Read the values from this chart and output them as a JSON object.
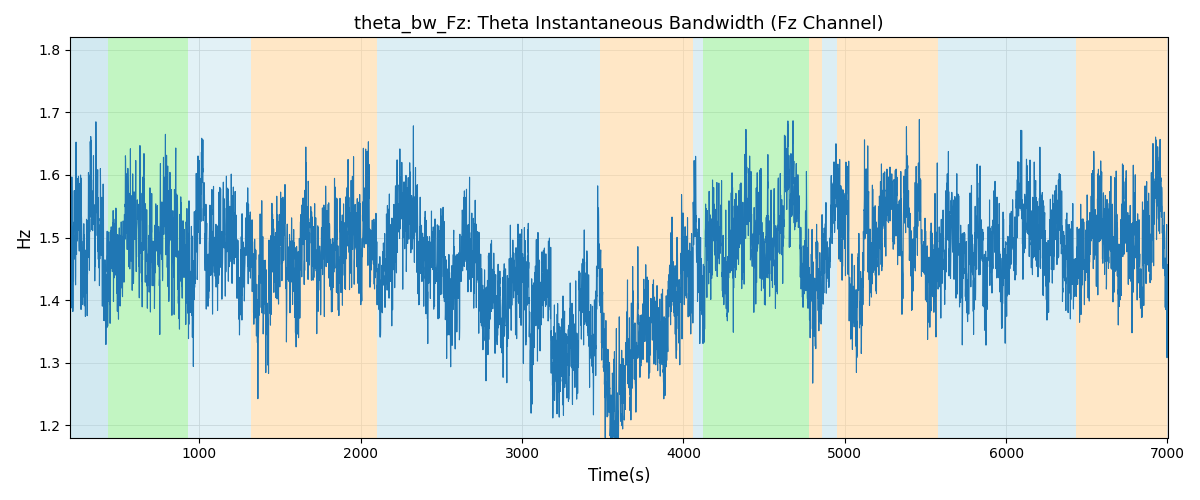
{
  "title": "theta_bw_Fz: Theta Instantaneous Bandwidth (Fz Channel)",
  "xlabel": "Time(s)",
  "ylabel": "Hz",
  "xlim": [
    200,
    7000
  ],
  "ylim": [
    1.18,
    1.82
  ],
  "yticks": [
    1.2,
    1.3,
    1.4,
    1.5,
    1.6,
    1.7,
    1.8
  ],
  "xticks": [
    1000,
    2000,
    3000,
    4000,
    5000,
    6000,
    7000
  ],
  "line_color": "#2077b4",
  "line_width": 0.8,
  "background_color": "#ffffff",
  "bands": [
    {
      "xmin": 200,
      "xmax": 430,
      "color": "#add8e6",
      "alpha": 0.55
    },
    {
      "xmin": 430,
      "xmax": 930,
      "color": "#90ee90",
      "alpha": 0.55
    },
    {
      "xmin": 930,
      "xmax": 1320,
      "color": "#add8e6",
      "alpha": 0.35
    },
    {
      "xmin": 1320,
      "xmax": 2100,
      "color": "#ffd8a0",
      "alpha": 0.6
    },
    {
      "xmin": 2100,
      "xmax": 3480,
      "color": "#add8e6",
      "alpha": 0.42
    },
    {
      "xmin": 3480,
      "xmax": 4060,
      "color": "#ffd8a0",
      "alpha": 0.6
    },
    {
      "xmin": 4060,
      "xmax": 4120,
      "color": "#add8e6",
      "alpha": 0.42
    },
    {
      "xmin": 4120,
      "xmax": 4780,
      "color": "#90ee90",
      "alpha": 0.55
    },
    {
      "xmin": 4780,
      "xmax": 4860,
      "color": "#ffd8a0",
      "alpha": 0.6
    },
    {
      "xmin": 4860,
      "xmax": 4950,
      "color": "#add8e6",
      "alpha": 0.42
    },
    {
      "xmin": 4950,
      "xmax": 5580,
      "color": "#ffd8a0",
      "alpha": 0.6
    },
    {
      "xmin": 5580,
      "xmax": 6430,
      "color": "#add8e6",
      "alpha": 0.42
    },
    {
      "xmin": 6430,
      "xmax": 7000,
      "color": "#ffd8a0",
      "alpha": 0.6
    }
  ],
  "seed": 2023,
  "t_start": 200,
  "t_end": 7000,
  "fs": 1.0
}
